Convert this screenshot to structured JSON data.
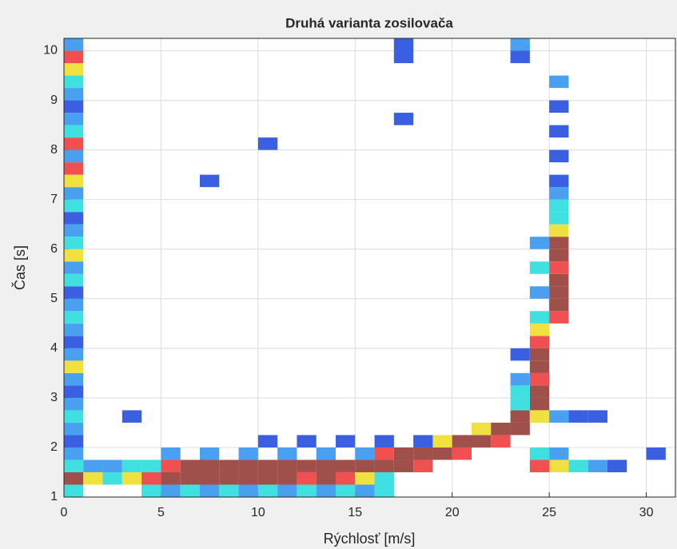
{
  "chart_data": {
    "type": "heatmap",
    "title": "Druhá varianta zosilovača",
    "xlabel": "Rýchlosť [m/s]",
    "ylabel": "Čas [s]",
    "xlim": [
      0,
      31.5
    ],
    "ylim": [
      1,
      10.25
    ],
    "xticks": [
      0,
      5,
      10,
      15,
      20,
      25,
      30
    ],
    "yticks": [
      1,
      2,
      3,
      4,
      5,
      6,
      7,
      8,
      9,
      10
    ],
    "grid": true,
    "colormap": [
      "#3a5fe0",
      "#4aa0f0",
      "#40e0e0",
      "#f0e040",
      "#f05050",
      "#a0504a"
    ],
    "cells": [
      [
        0.5,
        1.125,
        0.35
      ],
      [
        0.5,
        1.375,
        0.9
      ],
      [
        0.5,
        1.625,
        0.35
      ],
      [
        0.5,
        1.875,
        0.2
      ],
      [
        0.5,
        2.125,
        0.1
      ],
      [
        0.5,
        2.375,
        0.2
      ],
      [
        0.5,
        2.625,
        0.35
      ],
      [
        0.5,
        2.875,
        0.2
      ],
      [
        0.5,
        3.125,
        0.1
      ],
      [
        0.5,
        3.375,
        0.2
      ],
      [
        0.5,
        3.625,
        0.55
      ],
      [
        0.5,
        3.875,
        0.2
      ],
      [
        0.5,
        4.125,
        0.1
      ],
      [
        0.5,
        4.375,
        0.2
      ],
      [
        0.5,
        4.625,
        0.35
      ],
      [
        0.5,
        4.875,
        0.2
      ],
      [
        0.5,
        5.125,
        0.1
      ],
      [
        0.5,
        5.375,
        0.35
      ],
      [
        0.5,
        5.625,
        0.2
      ],
      [
        0.5,
        5.875,
        0.55
      ],
      [
        0.5,
        6.125,
        0.35
      ],
      [
        0.5,
        6.375,
        0.2
      ],
      [
        0.5,
        6.625,
        0.1
      ],
      [
        0.5,
        6.875,
        0.35
      ],
      [
        0.5,
        7.125,
        0.2
      ],
      [
        0.5,
        7.375,
        0.55
      ],
      [
        0.5,
        7.625,
        0.75
      ],
      [
        0.5,
        7.875,
        0.2
      ],
      [
        0.5,
        8.125,
        0.75
      ],
      [
        0.5,
        8.375,
        0.35
      ],
      [
        0.5,
        8.625,
        0.2
      ],
      [
        0.5,
        8.875,
        0.1
      ],
      [
        0.5,
        9.125,
        0.2
      ],
      [
        0.5,
        9.375,
        0.35
      ],
      [
        0.5,
        9.625,
        0.55
      ],
      [
        0.5,
        9.875,
        0.75
      ],
      [
        0.5,
        10.125,
        0.2
      ],
      [
        1.5,
        1.375,
        0.55
      ],
      [
        1.5,
        1.625,
        0.2
      ],
      [
        2.5,
        1.375,
        0.35
      ],
      [
        2.5,
        1.625,
        0.2
      ],
      [
        3.5,
        1.375,
        0.55
      ],
      [
        3.5,
        1.625,
        0.35
      ],
      [
        4.5,
        1.375,
        0.75
      ],
      [
        4.5,
        1.625,
        0.35
      ],
      [
        5.5,
        1.375,
        0.9
      ],
      [
        5.5,
        1.625,
        0.75
      ],
      [
        6.5,
        1.375,
        0.9
      ],
      [
        6.5,
        1.625,
        0.9
      ],
      [
        7.5,
        1.375,
        0.9
      ],
      [
        7.5,
        1.625,
        0.9
      ],
      [
        8.5,
        1.375,
        0.9
      ],
      [
        8.5,
        1.625,
        0.9
      ],
      [
        9.5,
        1.375,
        0.9
      ],
      [
        9.5,
        1.625,
        0.9
      ],
      [
        10.5,
        1.375,
        0.9
      ],
      [
        10.5,
        1.625,
        0.9
      ],
      [
        11.5,
        1.375,
        0.9
      ],
      [
        11.5,
        1.625,
        0.9
      ],
      [
        12.5,
        1.375,
        0.75
      ],
      [
        12.5,
        1.625,
        0.9
      ],
      [
        13.5,
        1.375,
        0.9
      ],
      [
        13.5,
        1.625,
        0.9
      ],
      [
        14.5,
        1.375,
        0.75
      ],
      [
        14.5,
        1.625,
        0.9
      ],
      [
        15.5,
        1.375,
        0.55
      ],
      [
        15.5,
        1.625,
        0.9
      ],
      [
        16.5,
        1.375,
        0.35
      ],
      [
        16.5,
        1.625,
        0.9
      ],
      [
        16.5,
        1.875,
        0.75
      ],
      [
        17.5,
        1.625,
        0.9
      ],
      [
        17.5,
        1.875,
        0.9
      ],
      [
        18.5,
        1.625,
        0.75
      ],
      [
        18.5,
        1.875,
        0.9
      ],
      [
        19.5,
        1.875,
        0.9
      ],
      [
        19.5,
        2.125,
        0.55
      ],
      [
        20.5,
        1.875,
        0.75
      ],
      [
        20.5,
        2.125,
        0.9
      ],
      [
        21.5,
        2.125,
        0.9
      ],
      [
        21.5,
        2.375,
        0.55
      ],
      [
        22.5,
        2.125,
        0.75
      ],
      [
        22.5,
        2.375,
        0.9
      ],
      [
        23.5,
        2.375,
        0.9
      ],
      [
        23.5,
        2.625,
        0.9
      ],
      [
        4.5,
        1.125,
        0.35
      ],
      [
        5.5,
        1.125,
        0.2
      ],
      [
        6.5,
        1.125,
        0.35
      ],
      [
        7.5,
        1.125,
        0.2
      ],
      [
        8.5,
        1.125,
        0.35
      ],
      [
        9.5,
        1.125,
        0.2
      ],
      [
        10.5,
        1.125,
        0.35
      ],
      [
        11.5,
        1.125,
        0.2
      ],
      [
        12.5,
        1.125,
        0.35
      ],
      [
        13.5,
        1.125,
        0.2
      ],
      [
        14.5,
        1.125,
        0.35
      ],
      [
        15.5,
        1.125,
        0.2
      ],
      [
        16.5,
        1.125,
        0.35
      ],
      [
        5.5,
        1.875,
        0.2
      ],
      [
        7.5,
        1.875,
        0.2
      ],
      [
        9.5,
        1.875,
        0.2
      ],
      [
        11.5,
        1.875,
        0.2
      ],
      [
        13.5,
        1.875,
        0.2
      ],
      [
        15.5,
        1.875,
        0.2
      ],
      [
        10.5,
        2.125,
        0.1
      ],
      [
        12.5,
        2.125,
        0.1
      ],
      [
        14.5,
        2.125,
        0.1
      ],
      [
        16.5,
        2.125,
        0.1
      ],
      [
        18.5,
        2.125,
        0.1
      ],
      [
        24.5,
        2.875,
        0.9
      ],
      [
        24.5,
        3.125,
        0.9
      ],
      [
        24.5,
        3.375,
        0.75
      ],
      [
        24.5,
        3.625,
        0.9
      ],
      [
        24.5,
        3.875,
        0.9
      ],
      [
        24.5,
        4.125,
        0.75
      ],
      [
        24.5,
        4.375,
        0.55
      ],
      [
        24.5,
        4.625,
        0.35
      ],
      [
        25.5,
        4.625,
        0.75
      ],
      [
        25.5,
        4.875,
        0.9
      ],
      [
        25.5,
        5.125,
        0.9
      ],
      [
        25.5,
        5.375,
        0.9
      ],
      [
        25.5,
        5.625,
        0.75
      ],
      [
        25.5,
        5.875,
        0.9
      ],
      [
        25.5,
        6.125,
        0.9
      ],
      [
        25.5,
        6.375,
        0.55
      ],
      [
        25.5,
        6.625,
        0.35
      ],
      [
        25.5,
        6.875,
        0.35
      ],
      [
        25.5,
        7.125,
        0.2
      ],
      [
        25.5,
        7.375,
        0.1
      ],
      [
        24.5,
        5.125,
        0.2
      ],
      [
        24.5,
        5.625,
        0.35
      ],
      [
        24.5,
        6.125,
        0.2
      ],
      [
        23.5,
        2.875,
        0.35
      ],
      [
        23.5,
        3.125,
        0.35
      ],
      [
        23.5,
        3.375,
        0.2
      ],
      [
        23.5,
        3.875,
        0.1
      ],
      [
        25.5,
        7.875,
        0.1
      ],
      [
        25.5,
        8.375,
        0.1
      ],
      [
        25.5,
        8.875,
        0.1
      ],
      [
        25.5,
        9.375,
        0.2
      ],
      [
        23.5,
        9.875,
        0.1
      ],
      [
        23.5,
        10.125,
        0.2
      ],
      [
        24.5,
        1.625,
        0.75
      ],
      [
        25.5,
        1.625,
        0.55
      ],
      [
        26.5,
        1.625,
        0.35
      ],
      [
        27.5,
        1.625,
        0.2
      ],
      [
        28.5,
        1.625,
        0.1
      ],
      [
        24.5,
        1.875,
        0.35
      ],
      [
        25.5,
        1.875,
        0.2
      ],
      [
        24.5,
        2.625,
        0.55
      ],
      [
        25.5,
        2.625,
        0.2
      ],
      [
        26.5,
        2.625,
        0.1
      ],
      [
        17.5,
        10.125,
        0.1
      ],
      [
        17.5,
        9.875,
        0.1
      ],
      [
        17.5,
        8.625,
        0.1
      ],
      [
        3.5,
        2.625,
        0.1
      ],
      [
        30.5,
        1.875,
        0.1
      ],
      [
        27.5,
        2.625,
        0.1
      ],
      [
        10.5,
        8.125,
        0.1
      ],
      [
        7.5,
        7.375,
        0.1
      ]
    ]
  }
}
